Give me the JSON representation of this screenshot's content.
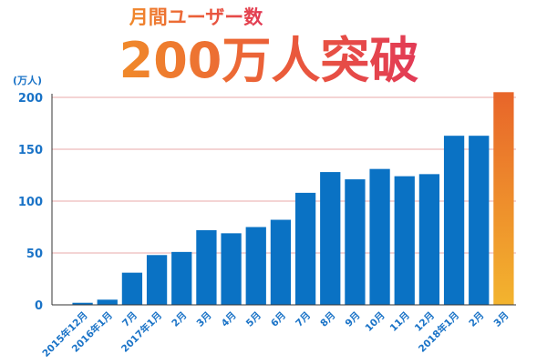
{
  "header": {
    "subtitle": "月間ユーザー数",
    "headline": "200万人突破"
  },
  "colors": {
    "bar": "#0a72c4",
    "highlight_top": "#e8652a",
    "highlight_bottom": "#f3b42e",
    "grid": "#e8a8a8",
    "axis": "#333333",
    "tick_text": "#1a73c7",
    "title_orange": "#f08a2a",
    "title_red": "#e5404e"
  },
  "chart_data": {
    "type": "bar",
    "unit_label": "(万人)",
    "ylim": [
      0,
      200
    ],
    "yticks": [
      0,
      50,
      100,
      150,
      200
    ],
    "grid": true,
    "categories": [
      "2015年12月",
      "2016年1月",
      "7月",
      "2017年1月",
      "2月",
      "3月",
      "4月",
      "5月",
      "6月",
      "7月",
      "8月",
      "9月",
      "10月",
      "11月",
      "12月",
      "2018年1月",
      "2月",
      "3月"
    ],
    "values": [
      2,
      5,
      31,
      48,
      51,
      72,
      69,
      75,
      82,
      108,
      128,
      121,
      131,
      124,
      126,
      163,
      163,
      205
    ],
    "highlight_index": 17
  }
}
